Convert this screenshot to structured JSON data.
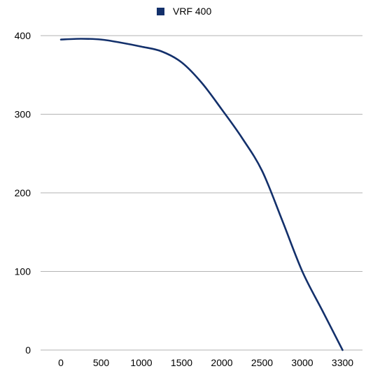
{
  "chart_data": {
    "type": "line",
    "title": "",
    "xlabel": "",
    "ylabel": "",
    "x_categories": [
      "0",
      "500",
      "1000",
      "1500",
      "2000",
      "2500",
      "3000",
      "3300"
    ],
    "ylim": [
      0,
      400
    ],
    "y_ticks": [
      0,
      100,
      200,
      300,
      400
    ],
    "grid": true,
    "legend_position": "top",
    "series": [
      {
        "name": "VRF 400",
        "color": "#13306b",
        "points": [
          [
            0,
            395
          ],
          [
            250,
            396
          ],
          [
            500,
            395
          ],
          [
            750,
            391
          ],
          [
            1000,
            386
          ],
          [
            1250,
            380
          ],
          [
            1500,
            366
          ],
          [
            1750,
            340
          ],
          [
            2000,
            306
          ],
          [
            2250,
            270
          ],
          [
            2500,
            228
          ],
          [
            2750,
            165
          ],
          [
            3000,
            100
          ],
          [
            3150,
            50
          ],
          [
            3300,
            0
          ]
        ]
      }
    ]
  }
}
